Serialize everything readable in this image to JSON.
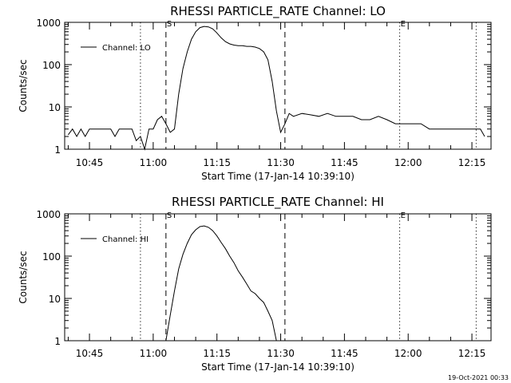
{
  "stamp": "19-Oct-2021 00:33",
  "chart_data": [
    {
      "type": "line",
      "title": "RHESSI PARTICLE_RATE Channel: LO",
      "xlabel": "Start Time (17-Jan-14 10:39:10)",
      "ylabel": "Counts/sec",
      "y_scale": "log",
      "ylim": [
        1,
        1000
      ],
      "xlim": [
        "10:39:10",
        "12:19:30"
      ],
      "x_ticks": [
        "10:45",
        "11:00",
        "11:15",
        "11:30",
        "11:45",
        "12:00",
        "12:15"
      ],
      "y_ticks": [
        "1",
        "10",
        "100",
        "1000"
      ],
      "legend": "top-left",
      "series": [
        {
          "name": "Channel: LO",
          "x": [
            "10:40",
            "10:41",
            "10:42",
            "10:43",
            "10:44",
            "10:45",
            "10:46",
            "10:47",
            "10:48",
            "10:49",
            "10:50",
            "10:51",
            "10:52",
            "10:53",
            "10:54",
            "10:55",
            "10:56",
            "10:57",
            "10:58",
            "10:59",
            "11:00",
            "11:01",
            "11:02",
            "11:03",
            "11:04",
            "11:05",
            "11:06",
            "11:07",
            "11:08",
            "11:09",
            "11:10",
            "11:11",
            "11:12",
            "11:13",
            "11:14",
            "11:15",
            "11:16",
            "11:17",
            "11:18",
            "11:19",
            "11:20",
            "11:21",
            "11:22",
            "11:23",
            "11:24",
            "11:25",
            "11:26",
            "11:27",
            "11:28",
            "11:29",
            "11:30",
            "11:31",
            "11:32",
            "11:33",
            "11:35",
            "11:37",
            "11:39",
            "11:41",
            "11:43",
            "11:45",
            "11:47",
            "11:49",
            "11:51",
            "11:53",
            "11:55",
            "11:57",
            "11:59",
            "12:01",
            "12:03",
            "12:05",
            "12:07",
            "12:09",
            "12:11",
            "12:13",
            "12:15",
            "12:17",
            "12:18"
          ],
          "values": [
            2.2,
            3,
            2,
            3,
            2,
            3,
            3,
            3,
            3,
            3,
            3,
            2,
            3,
            3,
            3,
            3,
            1.6,
            2,
            1,
            3,
            3,
            5,
            6,
            4,
            2.5,
            3,
            20,
            80,
            200,
            400,
            600,
            750,
            800,
            780,
            700,
            560,
            430,
            350,
            310,
            290,
            280,
            280,
            270,
            270,
            260,
            240,
            200,
            130,
            40,
            8,
            2.5,
            4,
            7,
            6,
            7,
            6.5,
            6,
            7,
            6,
            6,
            6,
            5,
            5,
            6,
            5,
            4,
            4,
            4,
            4,
            3,
            3,
            3,
            3,
            3,
            3,
            3,
            2
          ]
        }
      ],
      "annotations": [
        {
          "label": "S",
          "style": "dashed",
          "x": "11:03"
        },
        {
          "label": "",
          "style": "dashed",
          "x": "11:31"
        },
        {
          "label": "",
          "style": "dotted",
          "x": "10:57"
        },
        {
          "label": "E",
          "style": "dotted",
          "x": "11:58"
        },
        {
          "label": "",
          "style": "dotted",
          "x": "12:16"
        }
      ]
    },
    {
      "type": "line",
      "title": "RHESSI PARTICLE_RATE Channel: HI",
      "xlabel": "Start Time (17-Jan-14 10:39:10)",
      "ylabel": "Counts/sec",
      "y_scale": "log",
      "ylim": [
        1,
        1000
      ],
      "xlim": [
        "10:39:10",
        "12:19:30"
      ],
      "x_ticks": [
        "10:45",
        "11:00",
        "11:15",
        "11:30",
        "11:45",
        "12:00",
        "12:15"
      ],
      "y_ticks": [
        "1",
        "10",
        "100",
        "1000"
      ],
      "legend": "top-left",
      "series": [
        {
          "name": "Channel: HI",
          "x": [
            "11:03",
            "11:04",
            "11:05",
            "11:06",
            "11:07",
            "11:08",
            "11:09",
            "11:10",
            "11:11",
            "11:12",
            "11:13",
            "11:14",
            "11:15",
            "11:16",
            "11:17",
            "11:18",
            "11:19",
            "11:20",
            "11:21",
            "11:22",
            "11:23",
            "11:24",
            "11:25",
            "11:26",
            "11:27",
            "11:28",
            "11:29"
          ],
          "values": [
            1,
            4,
            15,
            50,
            110,
            200,
            320,
            420,
            500,
            520,
            480,
            400,
            300,
            210,
            150,
            100,
            70,
            45,
            32,
            22,
            15,
            13,
            10,
            8,
            5,
            3,
            1
          ]
        }
      ],
      "annotations": [
        {
          "label": "S",
          "style": "dashed",
          "x": "11:03"
        },
        {
          "label": "",
          "style": "dashed",
          "x": "11:31"
        },
        {
          "label": "",
          "style": "dotted",
          "x": "10:57"
        },
        {
          "label": "E",
          "style": "dotted",
          "x": "11:58"
        },
        {
          "label": "",
          "style": "dotted",
          "x": "12:16"
        }
      ]
    }
  ]
}
